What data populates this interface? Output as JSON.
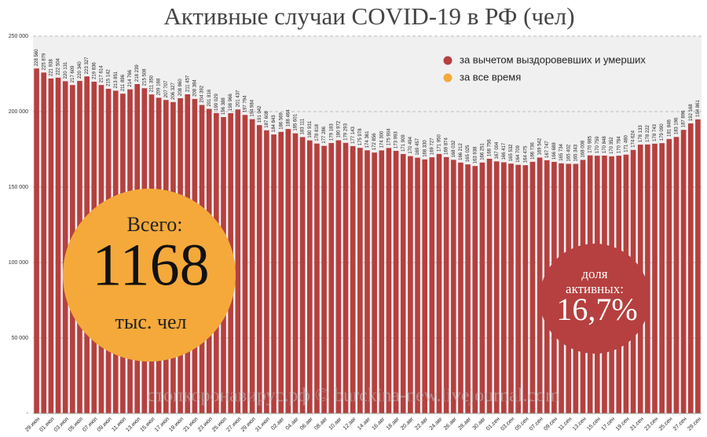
{
  "chart_data": {
    "type": "bar",
    "title": "Активные случаи COVID-19 в РФ (чел)",
    "categories": [
      "29.июн",
      null,
      "01.июл",
      null,
      "03.июл",
      null,
      "05.июл",
      null,
      "07.июл",
      null,
      "09.июл",
      null,
      "11.июл",
      null,
      "13.июл",
      null,
      "15.июл",
      null,
      "17.июл",
      null,
      "19.июл",
      null,
      "21.июл",
      null,
      "23.июл",
      null,
      "25.июл",
      null,
      "27.июл",
      null,
      "29.июл",
      null,
      "31.июл",
      null,
      "02.авг",
      null,
      "04.авг",
      null,
      "06.авг",
      null,
      "08.авг",
      null,
      "10.авг",
      null,
      "12.авг",
      null,
      "14.авг",
      null,
      "16.авг",
      null,
      "18.авг",
      null,
      "20.авг",
      null,
      "22.авг",
      null,
      "24.авг",
      null,
      "26.авг",
      null,
      "28.авг",
      null,
      "30.авг",
      null,
      "01.сен",
      null,
      "03.сен",
      null,
      "05.сен",
      null,
      "07.сен",
      null,
      "09.сен",
      null,
      "11.сен",
      null,
      "13.сен",
      null,
      "15.сен",
      null,
      "17.сен",
      null,
      "19.сен",
      null,
      "21.сен",
      null,
      "23.сен",
      null,
      "25.сен",
      null,
      "27.сен",
      null,
      "29.сен"
    ],
    "series": [
      {
        "name": "за вычетом выздоровевших и умерших",
        "color": "#b5403f",
        "values": [
          228560,
          225879,
          221938,
          222504,
          220131,
          217609,
          220340,
          223327,
          219836,
          217614,
          215142,
          213851,
          211896,
          214766,
          218239,
          215508,
          211350,
          209168,
          207707,
          206327,
          208860,
          211457,
          208384,
          204392,
          201816,
          199029,
          196388,
          198966,
          201437,
          197794,
          194984,
          191042,
          187608,
          184843,
          186569,
          188464,
          185601,
          183111,
          180931,
          178818,
          177286,
          179183,
          180972,
          179293,
          177143,
          175978,
          174361,
          172856,
          174300,
          175904,
          173993,
          171909,
          170494,
          169457,
          168330,
          169727,
          171950,
          169874,
          168032,
          166212,
          165025,
          163938,
          166251,
          168756,
          167004,
          166417,
          165532,
          164709,
          164475,
          166736,
          169542,
          167747,
          166688,
          165734,
          165402,
          165343,
          168008,
          170985,
          170759,
          170848,
          170352,
          170784,
          171480,
          174624,
          178133,
          178222,
          178743,
          179090,
          181846,
          183196,
          187896,
          192168,
          194861
        ],
        "value_labels": [
          "228 560",
          "225 879",
          "221 938",
          "222 504",
          "220 131",
          "217 609",
          "220 340",
          "223 327",
          "219 836",
          "217 614",
          "215 142",
          "213 851",
          "211 896",
          "214 766",
          "218 239",
          "215 508",
          "211 350",
          "209 168",
          "207 707",
          "206 327",
          "208 860",
          "211 457",
          "208 384",
          "204 392",
          "201 816",
          "199 029",
          "196 388",
          "198 966",
          "201 437",
          "197 794",
          "194 984",
          "191 042",
          "187 608",
          "184 843",
          "186 569",
          "188 464",
          "185 601",
          "183 111",
          "180 931",
          "178 818",
          "177 286",
          "179 183",
          "180 972",
          "179 293",
          "177 143",
          "175 978",
          "174 361",
          "172 856",
          "174 300",
          "175 904",
          "173 993",
          "171 909",
          "170 494",
          "169 457",
          "168 330",
          "169 727",
          "171 950",
          "169 874",
          "168 032",
          "166 212",
          "165 025",
          "163 938",
          "166 251",
          "168 756",
          "167 004",
          "166 417",
          "165 532",
          "164 709",
          "164 475",
          "166 736",
          "169 542",
          "167 747",
          "166 688",
          "165 734",
          "165 402",
          "165 343",
          "168 008",
          "170 985",
          "170 759",
          "170 848",
          "170 352",
          "170 784",
          "171 480",
          "174 624",
          "178 133",
          "178 222",
          "178 743",
          "179 090",
          "181 846",
          "183 196",
          "187 896",
          "192 168",
          "194 861"
        ]
      },
      {
        "name": "за все время",
        "color": "#f5a93a"
      }
    ],
    "ylim": [
      0,
      250000
    ],
    "yticks": [
      {
        "value": 0,
        "label": "-"
      },
      {
        "value": 50000,
        "label": "50 000"
      },
      {
        "value": 100000,
        "label": "100 000"
      },
      {
        "value": 150000,
        "label": "150 000"
      },
      {
        "value": 200000,
        "label": "200 000"
      },
      {
        "value": 250000,
        "label": "250 000"
      }
    ],
    "grid": true,
    "legend": "upper right",
    "total": {
      "label": "Всего:",
      "value": 1168,
      "unit": "тыс. чел"
    },
    "share": {
      "label": "доля активных:",
      "value": 16.7,
      "value_label": "16,7%"
    },
    "watermark": "стопкоронавирус.рф © burckina-new.livejournal.com"
  }
}
